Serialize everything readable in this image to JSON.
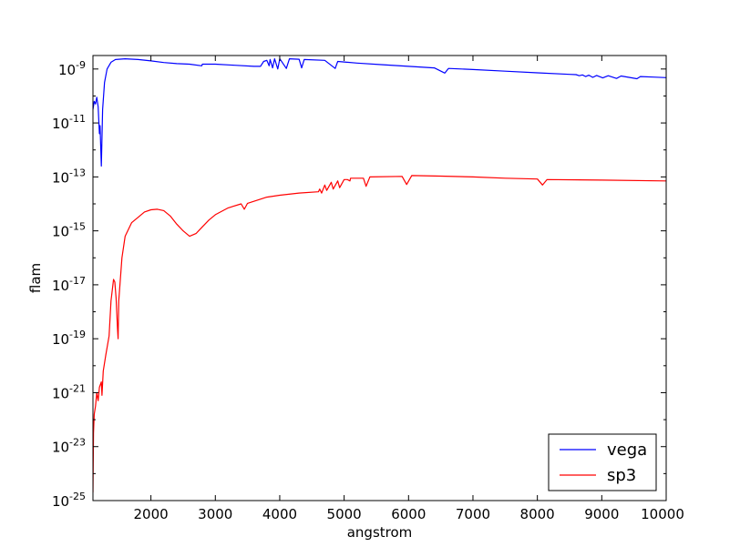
{
  "chart_data": {
    "type": "line",
    "title": "",
    "xlabel": "angstrom",
    "ylabel": "flam",
    "xlim": [
      1100,
      10000
    ],
    "ylim_log10": [
      -25,
      -8.5
    ],
    "yscale": "log",
    "grid": false,
    "legend_position": "lower-right",
    "x_ticks": [
      {
        "value": 2000,
        "label": "2000"
      },
      {
        "value": 3000,
        "label": "3000"
      },
      {
        "value": 4000,
        "label": "4000"
      },
      {
        "value": 5000,
        "label": "5000"
      },
      {
        "value": 6000,
        "label": "6000"
      },
      {
        "value": 7000,
        "label": "7000"
      },
      {
        "value": 8000,
        "label": "8000"
      },
      {
        "value": 9000,
        "label": "9000"
      },
      {
        "value": 10000,
        "label": "10000"
      }
    ],
    "y_ticks": [
      {
        "exp": -9,
        "base": "10",
        "sup": "-9"
      },
      {
        "exp": -11,
        "base": "10",
        "sup": "-11"
      },
      {
        "exp": -13,
        "base": "10",
        "sup": "-13"
      },
      {
        "exp": -15,
        "base": "10",
        "sup": "-15"
      },
      {
        "exp": -17,
        "base": "10",
        "sup": "-17"
      },
      {
        "exp": -19,
        "base": "10",
        "sup": "-19"
      },
      {
        "exp": -21,
        "base": "10",
        "sup": "-21"
      },
      {
        "exp": -23,
        "base": "10",
        "sup": "-23"
      },
      {
        "exp": -25,
        "base": "10",
        "sup": "-25"
      }
    ],
    "series": [
      {
        "name": "vega",
        "color": "#0000ff",
        "x_log10y": [
          [
            1100,
            -10.5
          ],
          [
            1120,
            -10.2
          ],
          [
            1140,
            -10.3
          ],
          [
            1160,
            -10.05
          ],
          [
            1180,
            -10.4
          ],
          [
            1200,
            -11.4
          ],
          [
            1210,
            -11.1
          ],
          [
            1230,
            -12.6
          ],
          [
            1250,
            -10.5
          ],
          [
            1280,
            -9.5
          ],
          [
            1320,
            -9.0
          ],
          [
            1380,
            -8.75
          ],
          [
            1450,
            -8.65
          ],
          [
            1600,
            -8.62
          ],
          [
            1800,
            -8.65
          ],
          [
            2000,
            -8.7
          ],
          [
            2200,
            -8.76
          ],
          [
            2400,
            -8.8
          ],
          [
            2600,
            -8.82
          ],
          [
            2790,
            -8.88
          ],
          [
            2800,
            -8.82
          ],
          [
            3000,
            -8.82
          ],
          [
            3300,
            -8.86
          ],
          [
            3600,
            -8.9
          ],
          [
            3700,
            -8.9
          ],
          [
            3750,
            -8.72
          ],
          [
            3800,
            -8.68
          ],
          [
            3835,
            -8.88
          ],
          [
            3850,
            -8.65
          ],
          [
            3889,
            -8.96
          ],
          [
            3920,
            -8.62
          ],
          [
            3970,
            -9.0
          ],
          [
            4000,
            -8.62
          ],
          [
            4102,
            -8.98
          ],
          [
            4150,
            -8.62
          ],
          [
            4300,
            -8.64
          ],
          [
            4340,
            -8.96
          ],
          [
            4380,
            -8.65
          ],
          [
            4700,
            -8.68
          ],
          [
            4861,
            -8.98
          ],
          [
            4900,
            -8.72
          ],
          [
            5200,
            -8.78
          ],
          [
            5600,
            -8.84
          ],
          [
            6000,
            -8.9
          ],
          [
            6400,
            -8.96
          ],
          [
            6563,
            -9.15
          ],
          [
            6620,
            -8.98
          ],
          [
            7000,
            -9.02
          ],
          [
            7500,
            -9.08
          ],
          [
            8000,
            -9.14
          ],
          [
            8500,
            -9.2
          ],
          [
            8600,
            -9.21
          ],
          [
            8650,
            -9.25
          ],
          [
            8700,
            -9.22
          ],
          [
            8750,
            -9.28
          ],
          [
            8800,
            -9.23
          ],
          [
            8860,
            -9.31
          ],
          [
            8920,
            -9.24
          ],
          [
            9015,
            -9.33
          ],
          [
            9100,
            -9.25
          ],
          [
            9229,
            -9.35
          ],
          [
            9300,
            -9.26
          ],
          [
            9546,
            -9.36
          ],
          [
            9600,
            -9.28
          ],
          [
            9800,
            -9.3
          ],
          [
            10000,
            -9.32
          ]
        ]
      },
      {
        "name": "sp3",
        "color": "#ff0000",
        "x_log10y": [
          [
            1100,
            -24.7
          ],
          [
            1108,
            -22.5
          ],
          [
            1120,
            -21.8
          ],
          [
            1140,
            -21.5
          ],
          [
            1160,
            -21.0
          ],
          [
            1180,
            -21.3
          ],
          [
            1200,
            -20.8
          ],
          [
            1230,
            -20.6
          ],
          [
            1240,
            -21.1
          ],
          [
            1260,
            -20.2
          ],
          [
            1300,
            -19.6
          ],
          [
            1350,
            -18.9
          ],
          [
            1380,
            -17.6
          ],
          [
            1400,
            -17.2
          ],
          [
            1420,
            -16.8
          ],
          [
            1440,
            -16.9
          ],
          [
            1460,
            -17.5
          ],
          [
            1480,
            -18.6
          ],
          [
            1490,
            -19.0
          ],
          [
            1500,
            -17.6
          ],
          [
            1550,
            -16.0
          ],
          [
            1600,
            -15.2
          ],
          [
            1700,
            -14.7
          ],
          [
            1800,
            -14.5
          ],
          [
            1900,
            -14.3
          ],
          [
            2000,
            -14.22
          ],
          [
            2100,
            -14.2
          ],
          [
            2200,
            -14.25
          ],
          [
            2300,
            -14.45
          ],
          [
            2400,
            -14.75
          ],
          [
            2500,
            -15.0
          ],
          [
            2600,
            -15.2
          ],
          [
            2700,
            -15.1
          ],
          [
            2800,
            -14.85
          ],
          [
            2900,
            -14.6
          ],
          [
            3000,
            -14.4
          ],
          [
            3200,
            -14.15
          ],
          [
            3400,
            -14.0
          ],
          [
            3450,
            -14.2
          ],
          [
            3500,
            -13.98
          ],
          [
            3800,
            -13.75
          ],
          [
            4000,
            -13.68
          ],
          [
            4300,
            -13.6
          ],
          [
            4600,
            -13.55
          ],
          [
            4620,
            -13.45
          ],
          [
            4650,
            -13.6
          ],
          [
            4700,
            -13.3
          ],
          [
            4730,
            -13.5
          ],
          [
            4800,
            -13.2
          ],
          [
            4830,
            -13.45
          ],
          [
            4900,
            -13.15
          ],
          [
            4930,
            -13.4
          ],
          [
            5000,
            -13.1
          ],
          [
            5050,
            -13.1
          ],
          [
            5090,
            -13.15
          ],
          [
            5100,
            -13.05
          ],
          [
            5300,
            -13.05
          ],
          [
            5340,
            -13.35
          ],
          [
            5400,
            -13.0
          ],
          [
            5900,
            -12.98
          ],
          [
            5970,
            -13.28
          ],
          [
            6050,
            -12.95
          ],
          [
            6500,
            -12.97
          ],
          [
            7000,
            -13.0
          ],
          [
            7500,
            -13.05
          ],
          [
            8000,
            -13.08
          ],
          [
            8080,
            -13.3
          ],
          [
            8150,
            -13.1
          ],
          [
            9000,
            -13.12
          ],
          [
            10000,
            -13.15
          ]
        ]
      }
    ]
  }
}
